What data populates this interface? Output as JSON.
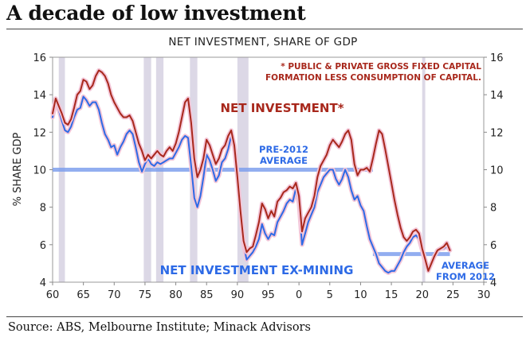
{
  "headline": "A decade of low investment",
  "source": "Source: ABS, Melbourne Institute; Minack Advisors",
  "chart_data": {
    "type": "line",
    "title": "NET INVESTMENT, SHARE OF GDP",
    "ylabel": "% SHARE GDP",
    "xlabel": "",
    "xlim": [
      1960,
      2030
    ],
    "ylim": [
      4,
      16
    ],
    "x_ticks": [
      60,
      65,
      70,
      75,
      80,
      85,
      90,
      95,
      0,
      5,
      10,
      15,
      20,
      25,
      30
    ],
    "y_ticks": [
      4,
      6,
      8,
      10,
      12,
      14,
      16
    ],
    "grid": false,
    "footnote_lines": [
      "* PUBLIC & PRIVATE GROSS FIXED CAPITAL",
      "FORMATION LESS CONSUMPTION OF CAPITAL."
    ],
    "series": [
      {
        "name": "NET INVESTMENT*",
        "color": "#a8281c",
        "x": [
          1960.0,
          1960.5,
          1961.0,
          1961.5,
          1962.0,
          1962.5,
          1963.0,
          1963.5,
          1964.0,
          1964.5,
          1965.0,
          1965.5,
          1966.0,
          1966.5,
          1967.0,
          1967.5,
          1968.0,
          1968.5,
          1969.0,
          1969.5,
          1970.0,
          1970.5,
          1971.0,
          1971.5,
          1972.0,
          1972.5,
          1973.0,
          1973.5,
          1974.0,
          1974.5,
          1975.0,
          1975.5,
          1976.0,
          1976.5,
          1977.0,
          1977.5,
          1978.0,
          1978.5,
          1979.0,
          1979.5,
          1980.0,
          1980.5,
          1981.0,
          1981.5,
          1982.0,
          1982.5,
          1983.0,
          1983.5,
          1984.0,
          1984.5,
          1985.0,
          1985.5,
          1986.0,
          1986.5,
          1987.0,
          1987.5,
          1988.0,
          1988.5,
          1989.0,
          1989.5,
          1990.0,
          1990.5,
          1991.0,
          1991.5,
          1992.0,
          1992.5,
          1993.0,
          1993.5,
          1994.0,
          1994.5,
          1995.0,
          1995.5,
          1996.0,
          1996.5,
          1997.0,
          1997.5,
          1998.0,
          1998.5,
          1999.0,
          1999.5,
          2000.0,
          2000.5,
          2001.0,
          2001.5,
          2002.0,
          2002.5,
          2003.0,
          2003.5,
          2004.0,
          2004.5,
          2005.0,
          2005.5,
          2006.0,
          2006.5,
          2007.0,
          2007.5,
          2008.0,
          2008.5,
          2009.0,
          2009.5,
          2010.0,
          2010.5,
          2011.0,
          2011.5,
          2012.0,
          2012.5,
          2013.0,
          2013.5,
          2014.0,
          2014.5,
          2015.0,
          2015.5,
          2016.0,
          2016.5,
          2017.0,
          2017.5,
          2018.0,
          2018.5,
          2019.0,
          2019.5,
          2020.0,
          2020.5,
          2021.0,
          2021.5,
          2022.0,
          2022.5,
          2023.0,
          2023.5,
          2024.0,
          2024.5
        ],
        "values": [
          13.0,
          13.8,
          13.4,
          13.0,
          12.5,
          12.4,
          12.7,
          13.3,
          14.0,
          14.2,
          14.8,
          14.7,
          14.3,
          14.5,
          15.0,
          15.3,
          15.2,
          15.0,
          14.6,
          14.0,
          13.6,
          13.3,
          13.0,
          12.8,
          12.8,
          12.9,
          12.6,
          12.0,
          11.4,
          11.0,
          10.5,
          10.8,
          10.6,
          10.8,
          11.0,
          10.8,
          10.7,
          11.0,
          11.2,
          11.0,
          11.4,
          12.0,
          12.8,
          13.6,
          13.8,
          12.5,
          10.6,
          9.6,
          10.0,
          10.6,
          11.6,
          11.3,
          10.8,
          10.3,
          10.6,
          11.1,
          11.3,
          11.8,
          12.1,
          11.3,
          9.6,
          7.8,
          6.2,
          5.6,
          5.8,
          5.9,
          6.5,
          7.2,
          8.2,
          7.9,
          7.4,
          7.8,
          7.5,
          8.3,
          8.5,
          8.8,
          8.9,
          9.1,
          9.0,
          9.3,
          8.6,
          6.7,
          7.4,
          7.7,
          8.0,
          8.6,
          9.6,
          10.2,
          10.5,
          10.8,
          11.3,
          11.6,
          11.4,
          11.2,
          11.5,
          11.9,
          12.1,
          11.6,
          10.3,
          9.7,
          10.0,
          10.0,
          10.1,
          9.9,
          10.6,
          11.4,
          12.1,
          11.9,
          11.1,
          10.2,
          9.3,
          8.4,
          7.6,
          6.9,
          6.4,
          6.2,
          6.4,
          6.7,
          6.8,
          6.6,
          5.8,
          5.2,
          4.6,
          5.0,
          5.4,
          5.7,
          5.8,
          5.9,
          6.1,
          5.7
        ]
      },
      {
        "name": "NET INVESTMENT EX-MINING",
        "color": "#2d6ae6",
        "x": [
          1960.0,
          1960.5,
          1961.0,
          1961.5,
          1962.0,
          1962.5,
          1963.0,
          1963.5,
          1964.0,
          1964.5,
          1965.0,
          1965.5,
          1966.0,
          1966.5,
          1967.0,
          1967.5,
          1968.0,
          1968.5,
          1969.0,
          1969.5,
          1970.0,
          1970.5,
          1971.0,
          1971.5,
          1972.0,
          1972.5,
          1973.0,
          1973.5,
          1974.0,
          1974.5,
          1975.0,
          1975.5,
          1976.0,
          1976.5,
          1977.0,
          1977.5,
          1978.0,
          1978.5,
          1979.0,
          1979.5,
          1980.0,
          1980.5,
          1981.0,
          1981.5,
          1982.0,
          1982.5,
          1983.0,
          1983.5,
          1984.0,
          1984.5,
          1985.0,
          1985.5,
          1986.0,
          1986.5,
          1987.0,
          1987.5,
          1988.0,
          1988.5,
          1989.0,
          1989.5,
          1990.0,
          1990.5,
          1991.0,
          1991.5,
          1992.0,
          1992.5,
          1993.0,
          1993.5,
          1994.0,
          1994.5,
          1995.0,
          1995.5,
          1996.0,
          1996.5,
          1997.0,
          1997.5,
          1998.0,
          1998.5,
          1999.0,
          1999.5,
          2000.0,
          2000.5,
          2001.0,
          2001.5,
          2002.0,
          2002.5,
          2003.0,
          2003.5,
          2004.0,
          2004.5,
          2005.0,
          2005.5,
          2006.0,
          2006.5,
          2007.0,
          2007.5,
          2008.0,
          2008.5,
          2009.0,
          2009.5,
          2010.0,
          2010.5,
          2011.0,
          2011.5,
          2012.0,
          2012.5,
          2013.0,
          2013.5,
          2014.0,
          2014.5,
          2015.0,
          2015.5,
          2016.0,
          2016.5,
          2017.0,
          2017.5,
          2018.0,
          2018.5,
          2019.0,
          2019.5,
          2020.0,
          2020.5,
          2021.0,
          2021.5,
          2022.0,
          2022.5,
          2023.0,
          2023.5,
          2024.0,
          2024.5
        ],
        "values": [
          12.8,
          13.6,
          13.2,
          12.6,
          12.1,
          12.0,
          12.3,
          12.8,
          13.2,
          13.3,
          13.9,
          13.7,
          13.4,
          13.6,
          13.6,
          13.2,
          12.5,
          11.9,
          11.6,
          11.2,
          11.3,
          10.8,
          11.2,
          11.5,
          11.9,
          12.1,
          11.9,
          11.2,
          10.4,
          9.9,
          10.3,
          10.6,
          10.3,
          10.2,
          10.4,
          10.3,
          10.4,
          10.5,
          10.6,
          10.6,
          10.9,
          11.2,
          11.6,
          11.8,
          11.7,
          10.2,
          8.5,
          8.0,
          8.6,
          9.6,
          10.8,
          10.5,
          10.0,
          9.4,
          9.7,
          10.4,
          10.6,
          11.1,
          11.8,
          11.2,
          9.7,
          7.8,
          6.0,
          5.2,
          5.4,
          5.6,
          5.9,
          6.3,
          7.1,
          6.6,
          6.3,
          6.6,
          6.5,
          7.2,
          7.5,
          7.8,
          8.2,
          8.4,
          8.3,
          9.0,
          8.2,
          6.0,
          6.6,
          7.2,
          7.6,
          8.0,
          8.8,
          9.2,
          9.6,
          9.8,
          10.0,
          10.0,
          9.5,
          9.2,
          9.5,
          10.0,
          9.6,
          8.9,
          8.4,
          8.6,
          8.1,
          7.8,
          7.0,
          6.3,
          5.9,
          5.5,
          5.0,
          4.8,
          4.6,
          4.5,
          4.6,
          4.6,
          4.9,
          5.2,
          5.6,
          5.9,
          6.1,
          6.4,
          6.5,
          6.3,
          5.7,
          5.0,
          4.7,
          5.0,
          5.4,
          5.7,
          5.8,
          5.8,
          5.9,
          5.7
        ]
      }
    ],
    "recession_bands": [
      [
        1961.0,
        1962.0
      ],
      [
        1974.8,
        1976.0
      ],
      [
        1976.8,
        1978.0
      ],
      [
        1982.3,
        1983.5
      ],
      [
        1990.0,
        1991.8
      ],
      [
        2020.0,
        2020.5
      ]
    ],
    "average_lines": [
      {
        "label": "PRE-2012 AVERAGE",
        "lines": [
          "PRE-2012",
          "AVERAGE"
        ],
        "value": 10.0,
        "x_from": 1960,
        "x_to": 2012,
        "color": "#7fa0ee"
      },
      {
        "label": "AVERAGE FROM 2012",
        "lines": [
          "AVERAGE",
          "FROM 2012"
        ],
        "value": 5.5,
        "x_from": 2012,
        "x_to": 2024.5,
        "color": "#7fa0ee"
      }
    ]
  }
}
